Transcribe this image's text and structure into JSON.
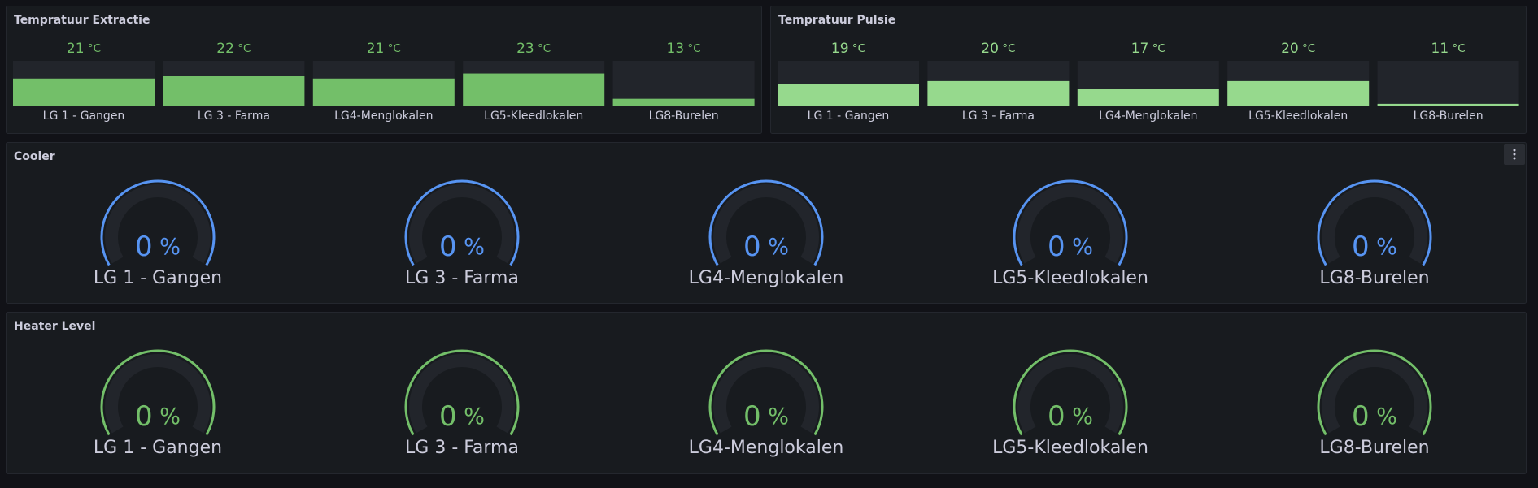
{
  "panels": [
    {
      "title": "Tempratuur Extractie",
      "type": "bargauge",
      "unit": "°C",
      "range": [
        10,
        28
      ],
      "color": "#73bf69",
      "items": [
        {
          "label": "LG 1 - Gangen",
          "value": 21
        },
        {
          "label": "LG 3 - Farma",
          "value": 22
        },
        {
          "label": "LG4-Menglokalen",
          "value": 21
        },
        {
          "label": "LG5-Kleedlokalen",
          "value": 23
        },
        {
          "label": "LG8-Burelen",
          "value": 13
        }
      ]
    },
    {
      "title": "Tempratuur Pulsie",
      "type": "bargauge",
      "unit": "°C",
      "range": [
        10,
        28
      ],
      "color": "#96d98d",
      "items": [
        {
          "label": "LG 1 - Gangen",
          "value": 19
        },
        {
          "label": "LG 3 - Farma",
          "value": 20
        },
        {
          "label": "LG4-Menglokalen",
          "value": 17
        },
        {
          "label": "LG5-Kleedlokalen",
          "value": 20
        },
        {
          "label": "LG8-Burelen",
          "value": 11
        }
      ]
    },
    {
      "title": "Cooler",
      "type": "gauge",
      "unit": "%",
      "range": [
        0,
        100
      ],
      "color": "#5794f2",
      "items": [
        {
          "label": "LG 1 - Gangen",
          "value": 0
        },
        {
          "label": "LG 3 - Farma",
          "value": 0
        },
        {
          "label": "LG4-Menglokalen",
          "value": 0
        },
        {
          "label": "LG5-Kleedlokalen",
          "value": 0
        },
        {
          "label": "LG8-Burelen",
          "value": 0
        }
      ]
    },
    {
      "title": "Heater Level",
      "type": "gauge",
      "unit": "%",
      "range": [
        0,
        100
      ],
      "color": "#73bf69",
      "items": [
        {
          "label": "LG 1 - Gangen",
          "value": 0
        },
        {
          "label": "LG 3 - Farma",
          "value": 0
        },
        {
          "label": "LG4-Menglokalen",
          "value": 0
        },
        {
          "label": "LG5-Kleedlokalen",
          "value": 0
        },
        {
          "label": "LG8-Burelen",
          "value": 0
        }
      ]
    }
  ]
}
